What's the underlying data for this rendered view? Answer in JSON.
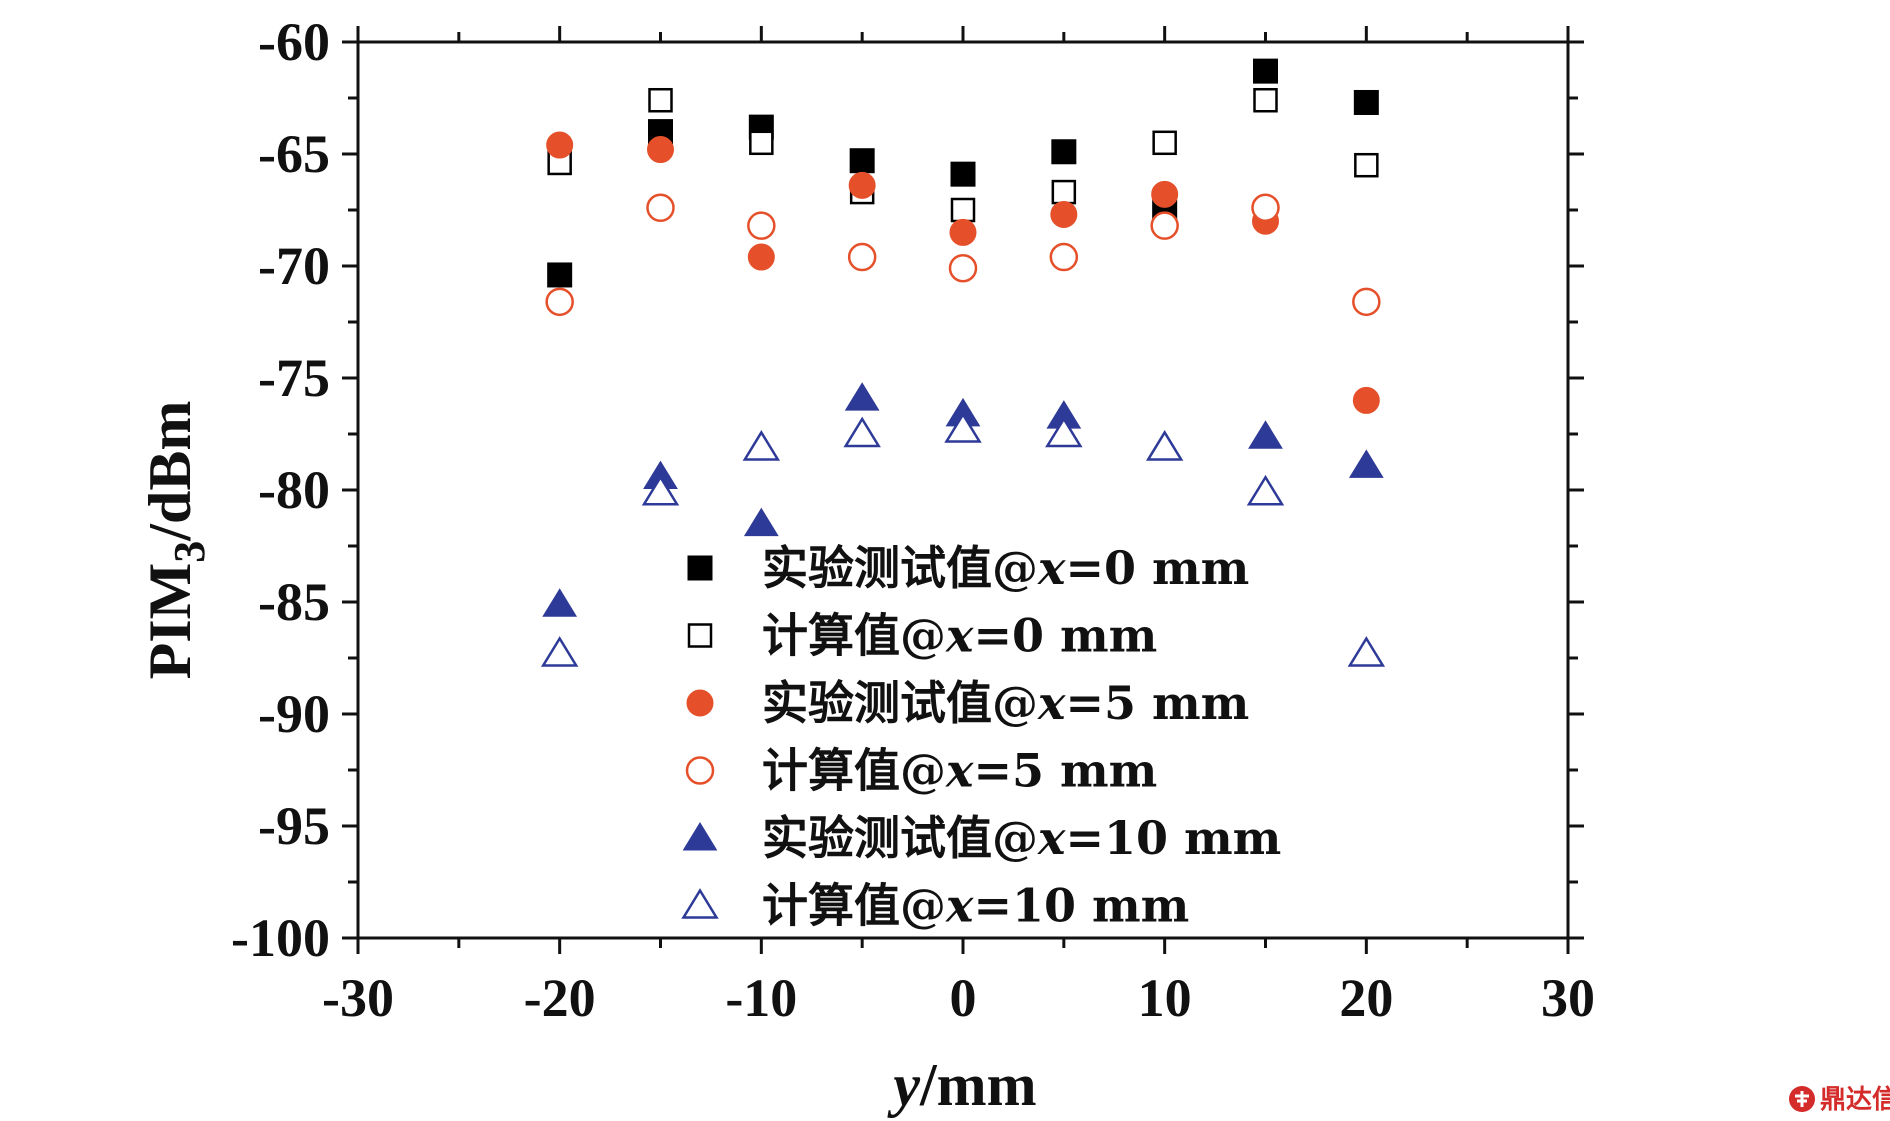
{
  "chart_data": {
    "type": "scatter",
    "xlabel_var": "y",
    "xlabel_unit": "/mm",
    "ylabel_main": "PIM",
    "ylabel_sub": "3",
    "ylabel_unit": "/dBm",
    "xlim": [
      -30,
      30
    ],
    "ylim": [
      -100,
      -60
    ],
    "xticks": [
      -30,
      -20,
      -10,
      0,
      10,
      20,
      30
    ],
    "yticks": [
      -60,
      -65,
      -70,
      -75,
      -80,
      -85,
      -90,
      -95,
      -100
    ],
    "x": [
      -20,
      -15,
      -10,
      -5,
      0,
      5,
      10,
      15,
      20
    ],
    "legend_position": "inside-lower-center",
    "series": [
      {
        "name": "实验测试值@x=0 mm",
        "legend_prefix": "实验测试值@",
        "legend_var": "x",
        "legend_suffix": "=0 mm",
        "marker": "square",
        "filled": true,
        "color": "#000000",
        "values": [
          -70.4,
          -64.0,
          -63.8,
          -65.3,
          -65.9,
          -64.9,
          -67.6,
          -61.3,
          -62.7
        ]
      },
      {
        "name": "计算值@x=0 mm",
        "legend_prefix": "计算值@",
        "legend_var": "x",
        "legend_suffix": "=0 mm",
        "marker": "square",
        "filled": false,
        "color": "#000000",
        "values": [
          -65.4,
          -62.6,
          -64.5,
          -66.7,
          -67.5,
          -66.7,
          -64.5,
          -62.6,
          -65.5
        ]
      },
      {
        "name": "实验测试值@x=5 mm",
        "legend_prefix": "实验测试值@",
        "legend_var": "x",
        "legend_suffix": "=5 mm",
        "marker": "circle",
        "filled": true,
        "color": "#e5502a",
        "values": [
          -64.6,
          -64.8,
          -69.6,
          -66.4,
          -68.5,
          -67.7,
          -66.8,
          -68.0,
          -76.0
        ]
      },
      {
        "name": "计算值@x=5 mm",
        "legend_prefix": "计算值@",
        "legend_var": "x",
        "legend_suffix": "=5 mm",
        "marker": "circle",
        "filled": false,
        "color": "#e5502a",
        "values": [
          -71.6,
          -67.4,
          -68.2,
          -69.6,
          -70.1,
          -69.6,
          -68.2,
          -67.4,
          -71.6
        ]
      },
      {
        "name": "实验测试值@x=10 mm",
        "legend_prefix": "实验测试值@",
        "legend_var": "x",
        "legend_suffix": "=10 mm",
        "marker": "triangle",
        "filled": true,
        "color": "#2e3a97",
        "values": [
          -85.1,
          -79.4,
          -81.5,
          -75.9,
          -76.6,
          -76.7,
          -78.1,
          -77.6,
          -78.9
        ]
      },
      {
        "name": "计算值@x=10 mm",
        "legend_prefix": "计算值@",
        "legend_var": "x",
        "legend_suffix": "=10 mm",
        "marker": "triangle",
        "filled": false,
        "color": "#2e3a97",
        "values": [
          -87.3,
          -80.1,
          -78.1,
          -77.5,
          -77.3,
          -77.5,
          -78.1,
          -80.1,
          -87.3
        ]
      }
    ]
  },
  "watermark": {
    "text": "鼎达信",
    "color": "#d42b2b",
    "icon": "seal-icon"
  }
}
